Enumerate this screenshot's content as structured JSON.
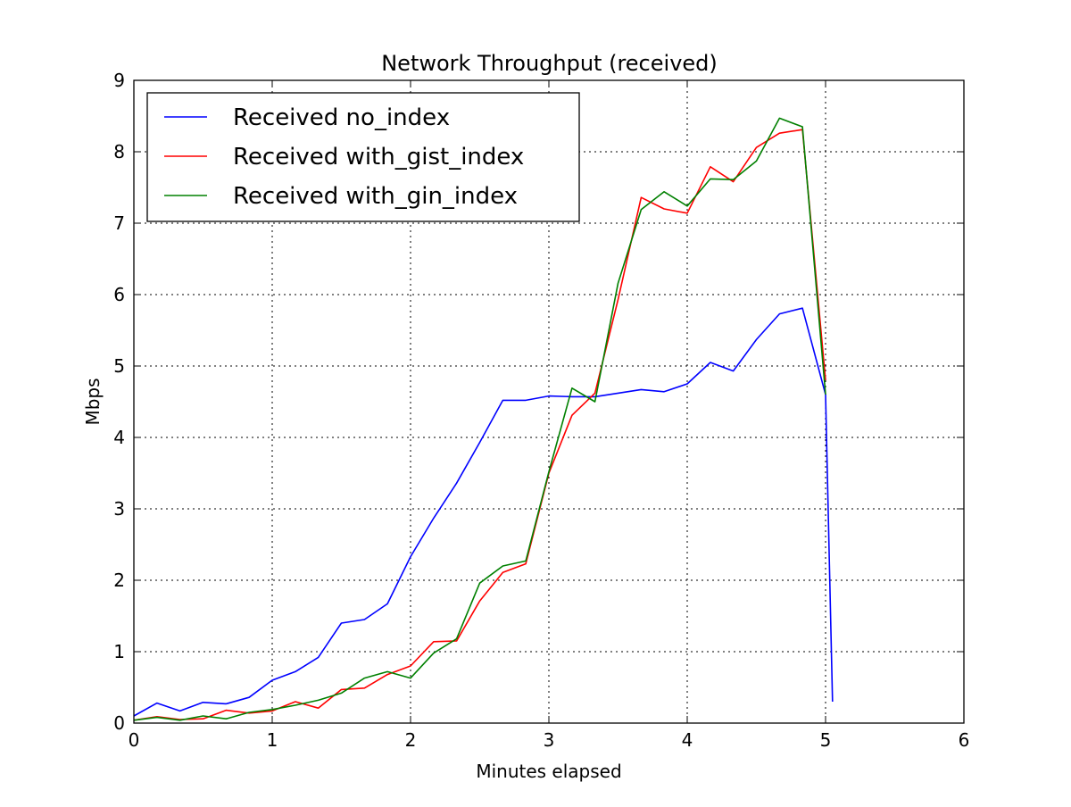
{
  "chart_data": {
    "type": "line",
    "title": "Network Throughput (received)",
    "xlabel": "Minutes elapsed",
    "ylabel": "Mbps",
    "xlim": [
      0,
      6
    ],
    "ylim": [
      0,
      9
    ],
    "xticks": [
      0,
      1,
      2,
      3,
      4,
      5,
      6
    ],
    "yticks": [
      0,
      1,
      2,
      3,
      4,
      5,
      6,
      7,
      8,
      9
    ],
    "grid": true,
    "legend_position": "top-left",
    "series": [
      {
        "name": "Received no_index",
        "color": "#0000ff",
        "x": [
          0,
          0.167,
          0.333,
          0.5,
          0.667,
          0.833,
          1.0,
          1.167,
          1.333,
          1.5,
          1.667,
          1.833,
          2.0,
          2.167,
          2.333,
          2.5,
          2.667,
          2.833,
          3.0,
          3.167,
          3.333,
          3.5,
          3.667,
          3.833,
          4.0,
          4.167,
          4.333,
          4.5,
          4.667,
          4.833,
          5.0,
          5.05
        ],
        "y": [
          0.1,
          0.28,
          0.17,
          0.29,
          0.27,
          0.36,
          0.6,
          0.72,
          0.92,
          1.4,
          1.45,
          1.67,
          2.33,
          2.87,
          3.36,
          3.93,
          4.52,
          4.52,
          4.58,
          4.57,
          4.57,
          4.62,
          4.67,
          4.64,
          4.75,
          5.05,
          4.93,
          5.37,
          5.73,
          5.81,
          4.6,
          0.3
        ]
      },
      {
        "name": "Received with_gist_index",
        "color": "#ff0000",
        "x": [
          0,
          0.167,
          0.333,
          0.5,
          0.667,
          0.833,
          1.0,
          1.167,
          1.333,
          1.5,
          1.667,
          1.833,
          2.0,
          2.167,
          2.333,
          2.5,
          2.667,
          2.833,
          3.0,
          3.167,
          3.333,
          3.5,
          3.667,
          3.833,
          4.0,
          4.167,
          4.333,
          4.5,
          4.667,
          4.833,
          5.0
        ],
        "y": [
          0.04,
          0.09,
          0.05,
          0.06,
          0.18,
          0.14,
          0.17,
          0.3,
          0.21,
          0.47,
          0.49,
          0.68,
          0.8,
          1.14,
          1.15,
          1.71,
          2.11,
          2.23,
          3.5,
          4.31,
          4.62,
          5.93,
          7.36,
          7.2,
          7.14,
          7.79,
          7.58,
          8.06,
          8.26,
          8.31,
          4.8
        ]
      },
      {
        "name": "Received with_gin_index",
        "color": "#008000",
        "x": [
          0,
          0.167,
          0.333,
          0.5,
          0.667,
          0.833,
          1.0,
          1.167,
          1.333,
          1.5,
          1.667,
          1.833,
          2.0,
          2.167,
          2.333,
          2.5,
          2.667,
          2.833,
          3.0,
          3.167,
          3.333,
          3.5,
          3.667,
          3.833,
          4.0,
          4.167,
          4.333,
          4.5,
          4.667,
          4.833,
          5.0
        ],
        "y": [
          0.04,
          0.08,
          0.04,
          0.1,
          0.06,
          0.15,
          0.19,
          0.25,
          0.32,
          0.42,
          0.63,
          0.72,
          0.63,
          0.98,
          1.18,
          1.96,
          2.2,
          2.27,
          3.52,
          4.69,
          4.5,
          6.16,
          7.19,
          7.44,
          7.24,
          7.62,
          7.61,
          7.87,
          8.47,
          8.35,
          4.6
        ]
      }
    ]
  }
}
